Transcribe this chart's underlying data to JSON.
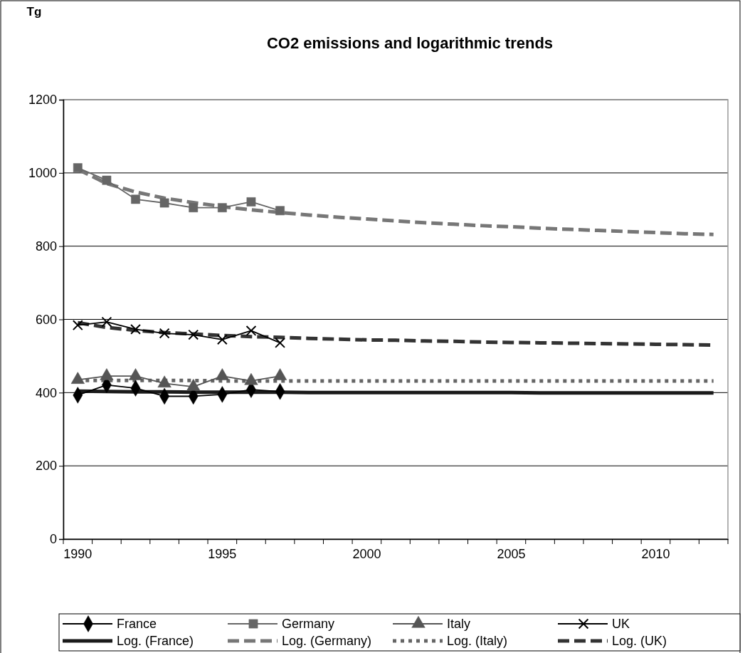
{
  "chart_data": {
    "type": "line",
    "title": "CO2 emissions and logarithmic trends",
    "annotations": [
      "Tg"
    ],
    "categories": [
      "1990",
      null,
      null,
      null,
      null,
      "1995",
      null,
      null,
      null,
      null,
      "2000",
      null,
      null,
      null,
      null,
      "2005",
      null,
      null,
      null,
      null,
      "2010",
      null,
      null
    ],
    "ylim": [
      0,
      1200
    ],
    "yticks": [
      0,
      200,
      400,
      600,
      800,
      1000,
      1200
    ],
    "grid": "y",
    "legend": "bottom",
    "series": [
      {
        "name": "France",
        "color": "#000000",
        "marker": "diamond",
        "line_style": "solid",
        "values": [
          393,
          421,
          412,
          390,
          390,
          395,
          408,
          403,
          null,
          null,
          null,
          null,
          null,
          null,
          null,
          null,
          null,
          null,
          null,
          null,
          null,
          null,
          null
        ]
      },
      {
        "name": "Germany",
        "color": "#666666",
        "marker": "square",
        "line_style": "solid",
        "values": [
          1014,
          980,
          928,
          918,
          905,
          905,
          921,
          897,
          null,
          null,
          null,
          null,
          null,
          null,
          null,
          null,
          null,
          null,
          null,
          null,
          null,
          null,
          null
        ]
      },
      {
        "name": "Italy",
        "color": "#555555",
        "marker": "triangle",
        "line_style": "solid",
        "values": [
          435,
          445,
          445,
          425,
          416,
          445,
          432,
          445,
          null,
          null,
          null,
          null,
          null,
          null,
          null,
          null,
          null,
          null,
          null,
          null,
          null,
          null,
          null
        ]
      },
      {
        "name": "UK",
        "color": "#000000",
        "marker": "cross",
        "line_style": "solid",
        "values": [
          584,
          593,
          573,
          562,
          558,
          545,
          569,
          536,
          null,
          null,
          null,
          null,
          null,
          null,
          null,
          null,
          null,
          null,
          null,
          null,
          null,
          null,
          null
        ]
      },
      {
        "name": "Log. (France)",
        "color": "#1a1a1a",
        "marker": "none",
        "line_style": "solid",
        "values": [
          404,
          403,
          402,
          402,
          401,
          401,
          401,
          401,
          400,
          400,
          400,
          400,
          400,
          400,
          400,
          400,
          399,
          399,
          399,
          399,
          399,
          399,
          399
        ]
      },
      {
        "name": "Log. (Germany)",
        "color": "#777777",
        "marker": "none",
        "line_style": "dashed",
        "values": [
          1010,
          971,
          948,
          931,
          919,
          908,
          899,
          892,
          885,
          879,
          874,
          869,
          864,
          860,
          856,
          853,
          849,
          846,
          843,
          840,
          837,
          834,
          832
        ]
      },
      {
        "name": "Log. (Italy)",
        "color": "#666666",
        "marker": "none",
        "line_style": "dotted",
        "values": [
          433,
          433,
          433,
          433,
          433,
          432,
          432,
          432,
          432,
          432,
          432,
          432,
          432,
          432,
          432,
          432,
          432,
          432,
          432,
          432,
          432,
          432,
          432
        ]
      },
      {
        "name": "Log. (UK)",
        "color": "#333333",
        "marker": "none",
        "line_style": "dashed",
        "values": [
          591,
          578,
          570,
          564,
          560,
          556,
          553,
          551,
          548,
          546,
          544,
          543,
          541,
          540,
          538,
          537,
          536,
          535,
          534,
          533,
          532,
          531,
          530
        ]
      }
    ]
  }
}
